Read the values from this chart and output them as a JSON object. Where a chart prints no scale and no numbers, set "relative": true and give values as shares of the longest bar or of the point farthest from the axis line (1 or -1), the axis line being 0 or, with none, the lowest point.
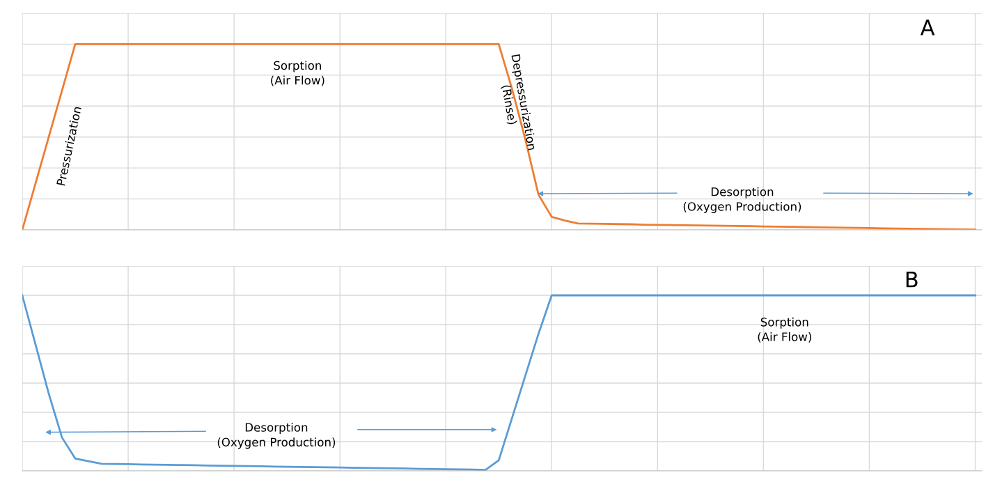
{
  "chart_data": [
    {
      "type": "line",
      "relative": true,
      "grid": true,
      "marker": "none",
      "line_style": "solid",
      "categories": [
        null,
        null,
        null,
        null,
        null,
        null,
        null,
        null,
        null,
        null,
        null,
        null,
        null,
        null,
        null,
        null,
        null,
        null,
        null,
        null,
        null,
        null,
        null,
        null,
        null,
        null,
        null,
        null,
        null,
        null,
        null,
        null,
        null,
        null,
        null,
        null,
        null,
        null,
        null,
        null,
        null,
        null,
        null,
        null,
        null,
        null,
        null,
        null,
        null,
        null,
        null,
        null,
        null,
        null,
        null,
        null,
        null,
        null,
        null,
        null,
        null,
        null,
        null,
        null,
        null,
        null,
        null,
        null,
        null,
        null,
        null,
        null,
        null
      ],
      "series": [
        {
          "color": "#ed7d31",
          "values": [
            0,
            0.25,
            0.5,
            0.75,
            1,
            1,
            1,
            1,
            1,
            1,
            1,
            1,
            1,
            1,
            1,
            1,
            1,
            1,
            1,
            1,
            1,
            1,
            1,
            1,
            1,
            1,
            1,
            1,
            1,
            1,
            1,
            1,
            1,
            1,
            1,
            1,
            1,
            0.76,
            0.49,
            0.19,
            0.07,
            0.05,
            0.034,
            0.033,
            0.032,
            0.031,
            0.03,
            0.028,
            0.027,
            0.026,
            0.025,
            0.024,
            0.023,
            0.022,
            0.021,
            0.02,
            0.018,
            0.017,
            0.016,
            0.015,
            0.014,
            0.013,
            0.012,
            0.011,
            0.01,
            0.008,
            0.007,
            0.006,
            0.005,
            0.004,
            0.003,
            0.002,
            0.001
          ]
        }
      ],
      "annotations": [
        "A",
        "Pressurization",
        "Sorption\n(Air Flow)",
        "Depressurization\n(Rinse)",
        "Desorption\n(Oxygen Production)"
      ]
    },
    {
      "type": "line",
      "relative": true,
      "grid": true,
      "marker": "none",
      "line_style": "solid",
      "categories": [
        null,
        null,
        null,
        null,
        null,
        null,
        null,
        null,
        null,
        null,
        null,
        null,
        null,
        null,
        null,
        null,
        null,
        null,
        null,
        null,
        null,
        null,
        null,
        null,
        null,
        null,
        null,
        null,
        null,
        null,
        null,
        null,
        null,
        null,
        null,
        null,
        null,
        null,
        null,
        null,
        null,
        null,
        null,
        null,
        null,
        null,
        null,
        null,
        null,
        null,
        null,
        null,
        null,
        null,
        null,
        null,
        null,
        null,
        null,
        null,
        null,
        null,
        null,
        null,
        null,
        null,
        null,
        null,
        null,
        null,
        null,
        null,
        null
      ],
      "series": [
        {
          "color": "#5b9bd5",
          "values": [
            1,
            0.72,
            0.44,
            0.19,
            0.07,
            0.055,
            0.04,
            0.039,
            0.038,
            0.036,
            0.035,
            0.034,
            0.033,
            0.032,
            0.03,
            0.029,
            0.028,
            0.027,
            0.026,
            0.024,
            0.023,
            0.022,
            0.021,
            0.02,
            0.019,
            0.017,
            0.016,
            0.015,
            0.014,
            0.013,
            0.011,
            0.01,
            0.009,
            0.008,
            0.007,
            0.005,
            0.06,
            0.3,
            0.54,
            0.78,
            1,
            1,
            1,
            1,
            1,
            1,
            1,
            1,
            1,
            1,
            1,
            1,
            1,
            1,
            1,
            1,
            1,
            1,
            1,
            1,
            1,
            1,
            1,
            1,
            1,
            1,
            1,
            1,
            1,
            1,
            1,
            1,
            1
          ]
        }
      ],
      "annotations": [
        "B",
        "Sorption\n(Air Flow)",
        "Desorption\n(Oxygen Production)"
      ]
    }
  ]
}
